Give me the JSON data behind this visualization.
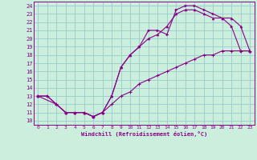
{
  "title": "",
  "xlabel": "Windchill (Refroidissement éolien,°C)",
  "bg_color": "#cceedd",
  "line_color": "#880088",
  "grid_color": "#99cccc",
  "xlim": [
    -0.5,
    23.5
  ],
  "ylim": [
    9.5,
    24.5
  ],
  "xticks": [
    0,
    1,
    2,
    3,
    4,
    5,
    6,
    7,
    8,
    9,
    10,
    11,
    12,
    13,
    14,
    15,
    16,
    17,
    18,
    19,
    20,
    21,
    22,
    23
  ],
  "yticks": [
    10,
    11,
    12,
    13,
    14,
    15,
    16,
    17,
    18,
    19,
    20,
    21,
    22,
    23,
    24
  ],
  "line1_x": [
    0,
    1,
    2,
    3,
    4,
    5,
    6,
    7,
    8,
    9,
    10,
    11,
    12,
    13,
    14,
    15,
    16,
    17,
    18,
    19,
    20,
    21,
    22,
    23
  ],
  "line1_y": [
    13,
    13,
    12,
    11,
    11,
    11,
    10.5,
    11,
    13,
    16.5,
    18,
    19,
    21,
    21,
    20.5,
    23.5,
    24,
    24,
    23.5,
    23,
    22.5,
    21.5,
    18.5,
    18.5
  ],
  "line2_x": [
    0,
    2,
    3,
    4,
    5,
    6,
    7,
    8,
    9,
    10,
    11,
    12,
    13,
    14,
    15,
    16,
    17,
    18,
    19,
    20,
    21,
    22,
    23
  ],
  "line2_y": [
    13,
    12,
    11,
    11,
    11,
    10.5,
    11,
    13,
    16.5,
    18,
    19,
    20,
    20.5,
    21.5,
    23,
    23.5,
    23.5,
    23,
    22.5,
    22.5,
    22.5,
    21.5,
    18.5
  ],
  "line3_x": [
    0,
    1,
    2,
    3,
    4,
    5,
    6,
    7,
    8,
    9,
    10,
    11,
    12,
    13,
    14,
    15,
    16,
    17,
    18,
    19,
    20,
    21,
    22,
    23
  ],
  "line3_y": [
    13,
    13,
    12,
    11,
    11,
    11,
    10.5,
    11,
    12,
    13,
    13.5,
    14.5,
    15,
    15.5,
    16,
    16.5,
    17,
    17.5,
    18,
    18,
    18.5,
    18.5,
    18.5,
    18.5
  ]
}
